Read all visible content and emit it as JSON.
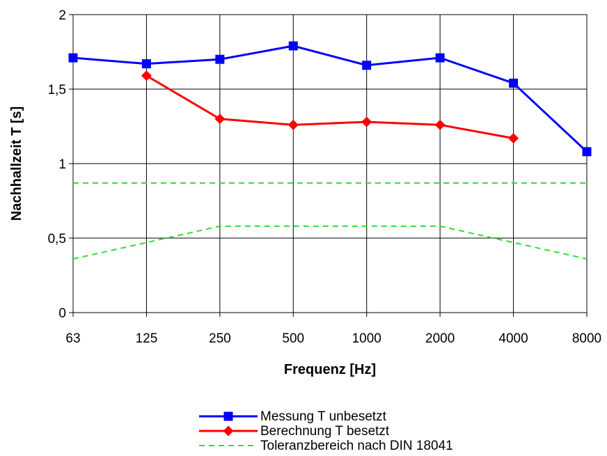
{
  "chart_data": {
    "type": "line",
    "categories": [
      "63",
      "125",
      "250",
      "500",
      "1000",
      "2000",
      "4000",
      "8000"
    ],
    "xlabel": "Frequenz [Hz]",
    "ylabel": "Nachhallzeit T [s]",
    "ylim": [
      0,
      2
    ],
    "yticks": [
      0,
      0.5,
      1,
      1.5,
      2
    ],
    "ytick_labels": [
      "0",
      "0,5",
      "1",
      "1,5",
      "2"
    ],
    "grid": true,
    "legend_position": "bottom",
    "series": [
      {
        "name": "Messung T unbesetzt",
        "color": "#0000ff",
        "marker": "square",
        "style": "solid",
        "values": [
          1.71,
          1.67,
          1.7,
          1.79,
          1.66,
          1.71,
          1.54,
          1.08
        ]
      },
      {
        "name": "Berechnung T besetzt",
        "color": "#ff0000",
        "marker": "diamond",
        "style": "solid",
        "values": [
          null,
          1.59,
          1.3,
          1.26,
          1.28,
          1.26,
          1.17,
          null
        ]
      },
      {
        "name": "Toleranzbereich nach DIN 18041",
        "color": "#33dd33",
        "marker": "none",
        "style": "dashed",
        "values": [
          0.87,
          0.87,
          0.87,
          0.87,
          0.87,
          0.87,
          0.87,
          0.87
        ]
      },
      {
        "name": "",
        "color": "#33dd33",
        "marker": "none",
        "style": "dashed",
        "values": [
          0.36,
          0.47,
          0.58,
          0.58,
          0.58,
          0.58,
          0.47,
          0.36
        ]
      }
    ]
  }
}
